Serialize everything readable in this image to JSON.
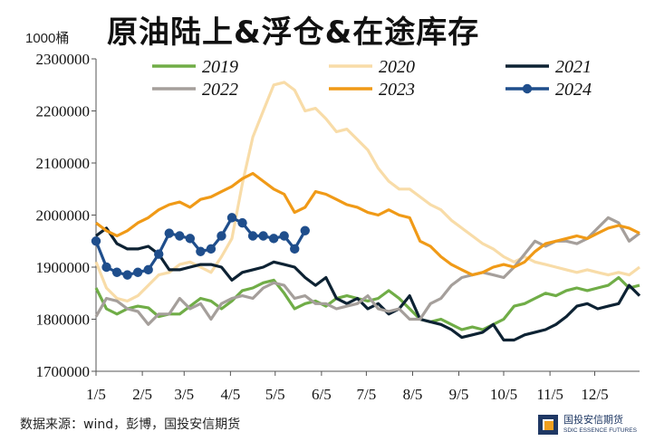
{
  "header": {
    "title": "原油陆上&浮仓&在途库存",
    "unit": "1000桶"
  },
  "footer": {
    "source": "数据来源：wind，彭博，国投安信期货"
  },
  "logo": {
    "cn": "国投安信期货",
    "en": "SDIC ESSENCE FUTURES"
  },
  "colors": {
    "2019": "#70ad47",
    "2020": "#f8dca8",
    "2021": "#0d2233",
    "2022": "#a59f9b",
    "2023": "#f09a17",
    "2024": "#1f4e8c"
  },
  "chart_data": {
    "type": "line",
    "title": "原油陆上&浮仓&在途库存",
    "ylabel": "1000桶",
    "ylim": [
      1700000,
      2300000
    ],
    "yticks": [
      "1700000",
      "1800000",
      "1900000",
      "2000000",
      "2100000",
      "2200000",
      "2300000"
    ],
    "xlim": [
      1,
      53
    ],
    "xticks": [
      {
        "label": "1/5",
        "week": 1
      },
      {
        "label": "2/5",
        "week": 5.43
      },
      {
        "label": "3/5",
        "week": 9.43
      },
      {
        "label": "4/5",
        "week": 13.86
      },
      {
        "label": "5/5",
        "week": 18.14
      },
      {
        "label": "6/5",
        "week": 22.57
      },
      {
        "label": "7/5",
        "week": 26.86
      },
      {
        "label": "8/5",
        "week": 31.29
      },
      {
        "label": "9/5",
        "week": 35.71
      },
      {
        "label": "10/5",
        "week": 40
      },
      {
        "label": "11/5",
        "week": 44.43
      },
      {
        "label": "12/5",
        "week": 48.71
      }
    ],
    "legend": {
      "placement": "top",
      "entries": [
        "2019",
        "2020",
        "2021",
        "2022",
        "2023",
        "2024"
      ]
    },
    "grid": false,
    "series": [
      {
        "name": "2019",
        "values": [
          1860000,
          1820000,
          1810000,
          1820000,
          1825000,
          1822000,
          1805000,
          1810000,
          1810000,
          1825000,
          1840000,
          1835000,
          1820000,
          1835000,
          1855000,
          1860000,
          1870000,
          1875000,
          1850000,
          1820000,
          1830000,
          1835000,
          1825000,
          1840000,
          1845000,
          1840000,
          1835000,
          1840000,
          1855000,
          1840000,
          1820000,
          1800000,
          1795000,
          1800000,
          1790000,
          1780000,
          1785000,
          1780000,
          1790000,
          1800000,
          1825000,
          1830000,
          1840000,
          1850000,
          1845000,
          1855000,
          1860000,
          1855000,
          1860000,
          1865000,
          1880000,
          1860000,
          1865000
        ]
      },
      {
        "name": "2020",
        "values": [
          1910000,
          1860000,
          1840000,
          1835000,
          1845000,
          1865000,
          1885000,
          1890000,
          1905000,
          1910000,
          1900000,
          1890000,
          1920000,
          1955000,
          2060000,
          2150000,
          2200000,
          2250000,
          2255000,
          2240000,
          2200000,
          2205000,
          2185000,
          2160000,
          2165000,
          2145000,
          2125000,
          2090000,
          2065000,
          2050000,
          2050000,
          2035000,
          2020000,
          2010000,
          1990000,
          1975000,
          1960000,
          1945000,
          1935000,
          1920000,
          1910000,
          1920000,
          1910000,
          1905000,
          1900000,
          1895000,
          1890000,
          1895000,
          1890000,
          1885000,
          1890000,
          1885000,
          1900000
        ]
      },
      {
        "name": "2021",
        "values": [
          1960000,
          1975000,
          1945000,
          1935000,
          1935000,
          1940000,
          1925000,
          1895000,
          1895000,
          1900000,
          1905000,
          1905000,
          1900000,
          1875000,
          1890000,
          1895000,
          1900000,
          1910000,
          1905000,
          1900000,
          1880000,
          1865000,
          1880000,
          1840000,
          1830000,
          1840000,
          1820000,
          1830000,
          1810000,
          1820000,
          1845000,
          1800000,
          1795000,
          1790000,
          1780000,
          1765000,
          1770000,
          1775000,
          1790000,
          1760000,
          1760000,
          1770000,
          1775000,
          1780000,
          1790000,
          1805000,
          1825000,
          1830000,
          1820000,
          1825000,
          1830000,
          1865000,
          1845000
        ]
      },
      {
        "name": "2022",
        "values": [
          1805000,
          1840000,
          1835000,
          1820000,
          1815000,
          1790000,
          1810000,
          1810000,
          1840000,
          1820000,
          1830000,
          1800000,
          1830000,
          1840000,
          1845000,
          1840000,
          1860000,
          1870000,
          1865000,
          1840000,
          1845000,
          1830000,
          1830000,
          1820000,
          1825000,
          1830000,
          1845000,
          1820000,
          1815000,
          1820000,
          1800000,
          1800000,
          1830000,
          1840000,
          1865000,
          1880000,
          1885000,
          1890000,
          1885000,
          1880000,
          1900000,
          1925000,
          1950000,
          1940000,
          1950000,
          1950000,
          1945000,
          1955000,
          1975000,
          1995000,
          1985000,
          1950000,
          1965000
        ]
      },
      {
        "name": "2023",
        "values": [
          1985000,
          1970000,
          1960000,
          1970000,
          1985000,
          1995000,
          2010000,
          2020000,
          2025000,
          2015000,
          2030000,
          2035000,
          2045000,
          2055000,
          2070000,
          2080000,
          2065000,
          2050000,
          2040000,
          2005000,
          2015000,
          2045000,
          2040000,
          2030000,
          2020000,
          2015000,
          2005000,
          2000000,
          2010000,
          2000000,
          1995000,
          1950000,
          1940000,
          1920000,
          1905000,
          1895000,
          1885000,
          1890000,
          1900000,
          1905000,
          1900000,
          1910000,
          1930000,
          1945000,
          1950000,
          1955000,
          1960000,
          1955000,
          1965000,
          1975000,
          1980000,
          1975000,
          1965000
        ]
      },
      {
        "name": "2024",
        "values": [
          1950000,
          1900000,
          1890000,
          1885000,
          1890000,
          1895000,
          1925000,
          1965000,
          1960000,
          1955000,
          1930000,
          1935000,
          1960000,
          1995000,
          1985000,
          1960000,
          1960000,
          1955000,
          1960000,
          1935000,
          1970000
        ]
      }
    ]
  }
}
